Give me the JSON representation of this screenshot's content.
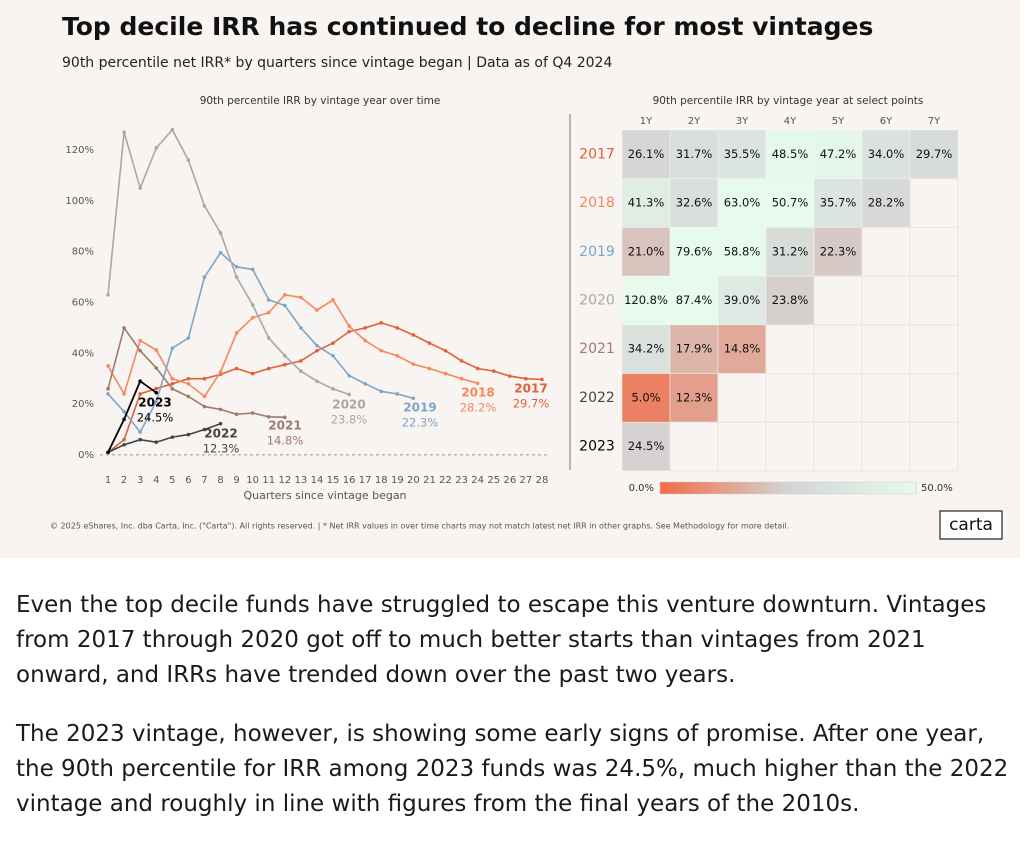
{
  "header": {
    "title": "Top decile IRR has continued to decline for most vintages",
    "subtitle": "90th percentile net IRR* by quarters since vintage began | Data as of Q4 2024"
  },
  "chart_data": [
    {
      "type": "line",
      "title": "90th percentile IRR by vintage year over time",
      "x_label": "Quarters since vintage began",
      "x": [
        1,
        2,
        3,
        4,
        5,
        6,
        7,
        8,
        9,
        10,
        11,
        12,
        13,
        14,
        15,
        16,
        17,
        18,
        19,
        20,
        21,
        22,
        23,
        24,
        25,
        26,
        27,
        28
      ],
      "xlim": [
        0.5,
        28.5
      ],
      "xticks": [
        1,
        2,
        3,
        4,
        5,
        6,
        7,
        8,
        9,
        10,
        11,
        12,
        13,
        14,
        15,
        16,
        17,
        18,
        19,
        20,
        21,
        22,
        23,
        24,
        25,
        26,
        27,
        28
      ],
      "ylim": [
        -2,
        130
      ],
      "yticks": [
        {
          "value": 0,
          "label": "0%"
        },
        {
          "value": 20,
          "label": "20%"
        },
        {
          "value": 40,
          "label": "40%"
        },
        {
          "value": 60,
          "label": "60%"
        },
        {
          "value": 80,
          "label": "80%"
        },
        {
          "value": 100,
          "label": "100%"
        },
        {
          "value": 120,
          "label": "120%"
        }
      ],
      "zero_line": true,
      "series": [
        {
          "name": "2017",
          "color": "#e0603a",
          "values": [
            1,
            6,
            24,
            26.1,
            28,
            30,
            30,
            31.7,
            34,
            32,
            34,
            35.5,
            37,
            41,
            44,
            48.5,
            50,
            52,
            50,
            47.2,
            44,
            41,
            37,
            34,
            33,
            31,
            30,
            29.7
          ],
          "value_labels": [
            null,
            null,
            null,
            null,
            null,
            null,
            null,
            null,
            null,
            null,
            null,
            null,
            null,
            null,
            null,
            null,
            null,
            null,
            null,
            null,
            null,
            null,
            null,
            null,
            null,
            null,
            null,
            "29.7%"
          ]
        },
        {
          "name": "2018",
          "color": "#f5885c",
          "values": [
            35,
            24,
            45,
            41.3,
            30,
            28,
            23,
            32.6,
            48,
            54,
            56,
            63,
            62,
            57,
            61,
            50.7,
            45,
            41,
            39,
            35.7,
            34,
            32,
            30,
            28.2,
            null,
            null,
            null,
            null
          ],
          "value_labels": [
            null,
            null,
            null,
            null,
            null,
            null,
            null,
            null,
            null,
            null,
            null,
            null,
            null,
            null,
            null,
            null,
            null,
            null,
            null,
            null,
            null,
            null,
            null,
            "28.2%",
            null,
            null,
            null,
            null
          ]
        },
        {
          "name": "2019",
          "color": "#7ea4c8",
          "values": [
            24,
            17,
            9,
            21,
            42,
            46,
            70,
            79.6,
            74,
            73,
            61,
            58.8,
            50,
            43,
            39,
            31.2,
            28,
            25,
            24,
            22.3,
            null,
            null,
            null,
            null,
            null,
            null,
            null,
            null
          ],
          "value_labels": [
            null,
            null,
            null,
            null,
            null,
            null,
            null,
            null,
            null,
            null,
            null,
            null,
            null,
            null,
            null,
            null,
            null,
            null,
            null,
            "22.3%",
            null,
            null,
            null,
            null,
            null,
            null,
            null,
            null
          ]
        },
        {
          "name": "2020",
          "color": "#a8a8a8",
          "values": [
            63,
            127,
            105,
            120.8,
            128,
            116,
            98,
            87.4,
            70,
            59,
            46,
            39,
            33,
            29,
            26,
            23.8,
            null,
            null,
            null,
            null,
            null,
            null,
            null,
            null,
            null,
            null,
            null,
            null
          ],
          "value_labels": [
            null,
            null,
            null,
            null,
            null,
            null,
            null,
            null,
            null,
            null,
            null,
            null,
            null,
            null,
            null,
            "23.8%",
            null,
            null,
            null,
            null,
            null,
            null,
            null,
            null,
            null,
            null,
            null,
            null
          ]
        },
        {
          "name": "2021",
          "color": "#9e7b6d",
          "values": [
            26,
            50,
            41,
            34.2,
            26,
            23,
            19,
            17.9,
            16,
            16.5,
            15,
            14.8,
            null,
            null,
            null,
            null,
            null,
            null,
            null,
            null,
            null,
            null,
            null,
            null,
            null,
            null,
            null,
            null
          ],
          "value_labels": [
            null,
            null,
            null,
            null,
            null,
            null,
            null,
            null,
            null,
            null,
            null,
            "14.8%",
            null,
            null,
            null,
            null,
            null,
            null,
            null,
            null,
            null,
            null,
            null,
            null,
            null,
            null,
            null,
            null
          ]
        },
        {
          "name": "2022",
          "color": "#444444",
          "values": [
            1,
            4,
            6,
            5,
            7,
            8,
            10,
            12.3,
            null,
            null,
            null,
            null,
            null,
            null,
            null,
            null,
            null,
            null,
            null,
            null,
            null,
            null,
            null,
            null,
            null,
            null,
            null,
            null
          ],
          "value_labels": [
            null,
            null,
            null,
            null,
            null,
            null,
            null,
            "12.3%",
            null,
            null,
            null,
            null,
            null,
            null,
            null,
            null,
            null,
            null,
            null,
            null,
            null,
            null,
            null,
            null,
            null,
            null,
            null,
            null
          ]
        },
        {
          "name": "2023",
          "color": "#000000",
          "values": [
            1,
            14,
            29,
            24.5,
            null,
            null,
            null,
            null,
            null,
            null,
            null,
            null,
            null,
            null,
            null,
            null,
            null,
            null,
            null,
            null,
            null,
            null,
            null,
            null,
            null,
            null,
            null,
            null
          ],
          "value_labels": [
            null,
            null,
            null,
            "24.5%",
            null,
            null,
            null,
            null,
            null,
            null,
            null,
            null,
            null,
            null,
            null,
            null,
            null,
            null,
            null,
            null,
            null,
            null,
            null,
            null,
            null,
            null,
            null,
            null
          ]
        }
      ]
    },
    {
      "type": "heatmap",
      "title": "90th percentile IRR by vintage year at select points",
      "columns": [
        "1Y",
        "2Y",
        "3Y",
        "4Y",
        "5Y",
        "6Y",
        "7Y"
      ],
      "rows": [
        "2017",
        "2018",
        "2019",
        "2020",
        "2021",
        "2022",
        "2023"
      ],
      "row_colors": [
        "#e0603a",
        "#f5885c",
        "#7ea4c8",
        "#a8a8a8",
        "#9e7b6d",
        "#444444",
        "#000000"
      ],
      "values": [
        [
          26.1,
          31.7,
          35.5,
          48.5,
          47.2,
          34.0,
          29.7
        ],
        [
          41.3,
          32.6,
          63.0,
          50.7,
          35.7,
          28.2,
          null
        ],
        [
          21.0,
          79.6,
          58.8,
          31.2,
          22.3,
          null,
          null
        ],
        [
          120.8,
          87.4,
          39.0,
          23.8,
          null,
          null,
          null
        ],
        [
          34.2,
          17.9,
          14.8,
          null,
          null,
          null,
          null
        ],
        [
          5.0,
          12.3,
          null,
          null,
          null,
          null,
          null
        ],
        [
          24.5,
          null,
          null,
          null,
          null,
          null,
          null
        ]
      ],
      "value_labels": [
        [
          "26.1%",
          "31.7%",
          "35.5%",
          "48.5%",
          "47.2%",
          "34.0%",
          "29.7%"
        ],
        [
          "41.3%",
          "32.6%",
          "63.0%",
          "50.7%",
          "35.7%",
          "28.2%",
          null
        ],
        [
          "21.0%",
          "79.6%",
          "58.8%",
          "31.2%",
          "22.3%",
          null,
          null
        ],
        [
          "120.8%",
          "87.4%",
          "39.0%",
          "23.8%",
          null,
          null,
          null
        ],
        [
          "34.2%",
          "17.9%",
          "14.8%",
          null,
          null,
          null,
          null
        ],
        [
          "5.0%",
          "12.3%",
          null,
          null,
          null,
          null,
          null
        ],
        [
          "24.5%",
          null,
          null,
          null,
          null,
          null,
          null
        ]
      ],
      "color_scale": {
        "colors": [
          "#f26b45",
          "#d4d4d4",
          "#e6faee"
        ],
        "range": [
          0,
          50
        ],
        "ticks": [
          {
            "value": 0,
            "label": "0.0%"
          },
          {
            "value": 50,
            "label": "50.0%"
          }
        ]
      }
    }
  ],
  "footer": {
    "note": "© 2025 eShares, Inc. dba Carta, Inc. (\"Carta\"). All rights reserved.  |  * Net IRR values in over time charts may not match latest net IRR in other  graphs. See Methodology for more detail.",
    "logo": "carta"
  },
  "text": {
    "paragraphs": [
      "Even the top decile funds have struggled to escape this venture downturn. Vintages from 2017 through 2020 got off to much better starts than vintages from 2021 onward, and IRRs have trended down over the past two years.",
      "The 2023 vintage, however, is showing some early signs of promise. After one year, the 90th percentile for IRR among 2023 funds was 24.5%, much higher than the 2022 vintage and roughly in line with figures from the final years of the 2010s."
    ]
  }
}
